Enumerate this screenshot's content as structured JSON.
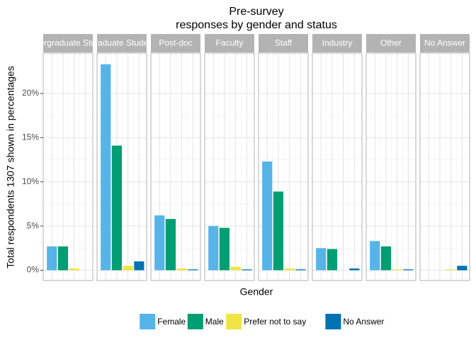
{
  "chart_data": {
    "type": "bar",
    "title": [
      "Pre-survey",
      "responses by gender and status"
    ],
    "x_label": "Gender",
    "y_label": "Total respondents 1307 shown in percentages",
    "facets": [
      "Undergraduate Student",
      "Graduate Student",
      "Post-doc",
      "Faculty",
      "Staff",
      "Industry",
      "Other",
      "No Answer"
    ],
    "series": [
      {
        "name": "Female",
        "color": "#56B4E9",
        "values": [
          2.7,
          23.3,
          6.2,
          5.0,
          12.3,
          2.5,
          3.3,
          null
        ]
      },
      {
        "name": "Male",
        "color": "#009E73",
        "values": [
          2.7,
          14.1,
          5.8,
          4.8,
          8.9,
          2.4,
          2.7,
          null
        ]
      },
      {
        "name": "Prefer not to say",
        "color": "#F0E442",
        "values": [
          0.2,
          0.5,
          0.2,
          0.4,
          0.2,
          null,
          0.1,
          0.1
        ]
      },
      {
        "name": "No Answer",
        "color": "#0072B2",
        "values": [
          null,
          1.0,
          0.1,
          0.1,
          0.1,
          0.2,
          0.1,
          0.5
        ]
      }
    ],
    "ylim": [
      -1.16,
      24.56
    ],
    "yticks": [
      {
        "value": 0,
        "label": "0%"
      },
      {
        "value": 5,
        "label": "5%"
      },
      {
        "value": 10,
        "label": "10%"
      },
      {
        "value": 15,
        "label": "15%"
      },
      {
        "value": 20,
        "label": "20%"
      }
    ],
    "grid": true,
    "legend": "bottom"
  }
}
